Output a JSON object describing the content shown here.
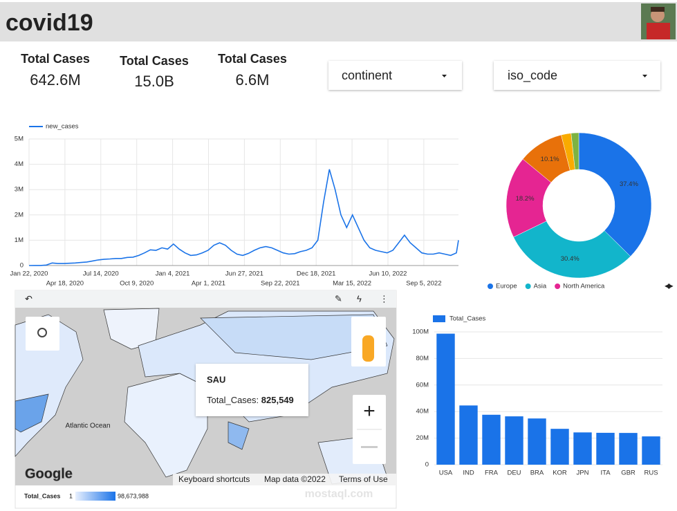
{
  "header": {
    "title": "covid19"
  },
  "scorecards": [
    {
      "label": "Total Cases",
      "value": "642.6M"
    },
    {
      "label": "Total Cases",
      "value": "15.0B"
    },
    {
      "label": "Total Cases",
      "value": "6.6M"
    }
  ],
  "filters": [
    "continent",
    "iso_code"
  ],
  "chart_data": [
    {
      "type": "line",
      "x": [
        "2020-01-22",
        "2020-02-05",
        "2020-02-19",
        "2020-03-04",
        "2020-03-18",
        "2020-04-01",
        "2020-04-15",
        "2020-04-29",
        "2020-05-13",
        "2020-05-27",
        "2020-06-10",
        "2020-06-24",
        "2020-07-08",
        "2020-07-22",
        "2020-08-05",
        "2020-08-19",
        "2020-09-02",
        "2020-09-16",
        "2020-09-30",
        "2020-10-14",
        "2020-10-28",
        "2020-11-11",
        "2020-11-25",
        "2020-12-09",
        "2020-12-23",
        "2021-01-06",
        "2021-01-20",
        "2021-02-03",
        "2021-02-17",
        "2021-03-03",
        "2021-03-17",
        "2021-03-31",
        "2021-04-14",
        "2021-04-28",
        "2021-05-12",
        "2021-05-26",
        "2021-06-09",
        "2021-06-23",
        "2021-07-07",
        "2021-07-21",
        "2021-08-04",
        "2021-08-18",
        "2021-09-01",
        "2021-09-15",
        "2021-09-29",
        "2021-10-13",
        "2021-10-27",
        "2021-11-10",
        "2021-11-24",
        "2021-12-08",
        "2021-12-22",
        "2022-01-05",
        "2022-01-19",
        "2022-02-02",
        "2022-02-16",
        "2022-03-02",
        "2022-03-16",
        "2022-03-30",
        "2022-04-13",
        "2022-04-27",
        "2022-05-11",
        "2022-05-25",
        "2022-06-08",
        "2022-06-22",
        "2022-07-06",
        "2022-07-20",
        "2022-08-03",
        "2022-08-17",
        "2022-08-31",
        "2022-09-14",
        "2022-09-28",
        "2022-10-12",
        "2022-10-26",
        "2022-11-09",
        "2022-11-23",
        "2022-11-28"
      ],
      "series": [
        {
          "name": "new_cases",
          "color": "#1a73e8",
          "values": [
            0,
            2000,
            2000,
            20000,
            100000,
            80000,
            80000,
            90000,
            100000,
            120000,
            140000,
            180000,
            220000,
            250000,
            260000,
            280000,
            280000,
            320000,
            330000,
            400000,
            500000,
            620000,
            600000,
            700000,
            650000,
            850000,
            650000,
            500000,
            400000,
            420000,
            500000,
            600000,
            800000,
            900000,
            800000,
            600000,
            450000,
            400000,
            480000,
            600000,
            700000,
            750000,
            700000,
            600000,
            500000,
            450000,
            470000,
            550000,
            600000,
            700000,
            1000000,
            2500000,
            3800000,
            3000000,
            2000000,
            1500000,
            2000000,
            1500000,
            1000000,
            700000,
            600000,
            550000,
            500000,
            600000,
            900000,
            1200000,
            900000,
            700000,
            500000,
            450000,
            450000,
            500000,
            450000,
            400000,
            500000,
            1000000
          ]
        }
      ],
      "xlim": [
        "2020-01-22",
        "2022-11-28"
      ],
      "xticks": [
        {
          "value": "2020-01-22",
          "label": "Jan 22, 2020"
        },
        {
          "value": "2020-04-18",
          "label": "Apr 18, 2020"
        },
        {
          "value": "2020-07-14",
          "label": "Jul 14, 2020"
        },
        {
          "value": "2020-10-09",
          "label": "Oct 9, 2020"
        },
        {
          "value": "2021-01-04",
          "label": "Jan 4, 2021"
        },
        {
          "value": "2021-04-01",
          "label": "Apr 1, 2021"
        },
        {
          "value": "2021-06-27",
          "label": "Jun 27, 2021"
        },
        {
          "value": "2021-09-22",
          "label": "Sep 22, 2021"
        },
        {
          "value": "2021-12-18",
          "label": "Dec 18, 2021"
        },
        {
          "value": "2022-03-15",
          "label": "Mar 15, 2022"
        },
        {
          "value": "2022-06-10",
          "label": "Jun 10, 2022"
        },
        {
          "value": "2022-09-05",
          "label": "Sep 5, 2022"
        }
      ],
      "ylim": [
        0,
        5000000
      ],
      "yticks": [
        0,
        {
          "value": 1000000,
          "label": "1M"
        },
        {
          "value": 2000000,
          "label": "2M"
        },
        {
          "value": 3000000,
          "label": "3M"
        },
        {
          "value": 4000000,
          "label": "4M"
        },
        {
          "value": 5000000,
          "label": "5M"
        }
      ],
      "grid": true,
      "legend": "top"
    },
    {
      "type": "pie",
      "categories": [
        "Europe",
        "Asia",
        "North America",
        null,
        null,
        null
      ],
      "values": [
        37.4,
        30.4,
        18.2,
        10.1,
        2.2,
        1.7
      ],
      "value_labels": [
        "37.4%",
        "30.4%",
        "18.2%",
        "10.1%",
        null,
        null
      ],
      "colors": [
        "#1a73e8",
        "#12b5cb",
        "#e52592",
        "#e8710a",
        "#f9ab00",
        "#7cb342"
      ],
      "donut": true,
      "legend": "bottom"
    },
    {
      "type": "bar",
      "categories": [
        "USA",
        "IND",
        "FRA",
        "DEU",
        "BRA",
        "KOR",
        "JPN",
        "ITA",
        "GBR",
        "RUS"
      ],
      "series": [
        {
          "name": "Total_Cases",
          "color": "#1a73e8",
          "values": [
            98673988,
            44600000,
            37600000,
            36400000,
            34800000,
            27000000,
            24300000,
            24000000,
            23900000,
            21300000
          ]
        }
      ],
      "ylim": [
        0,
        100000000
      ],
      "yticks": [
        0,
        {
          "value": 20000000,
          "label": "20M"
        },
        {
          "value": 40000000,
          "label": "40M"
        },
        {
          "value": 60000000,
          "label": "60M"
        },
        {
          "value": 80000000,
          "label": "80M"
        },
        {
          "value": 100000000,
          "label": "100M"
        }
      ],
      "grid": true,
      "legend": "top"
    }
  ],
  "map": {
    "tooltip": {
      "title": "SAU",
      "label": "Total_Cases:",
      "value": "825,549"
    },
    "ocean_label": "Atlantic Ocean",
    "logo": "Google",
    "attribution": [
      "Keyboard shortcuts",
      "Map data ©2022",
      "Terms of Use"
    ],
    "legend": {
      "title": "Total_Cases",
      "min": "1",
      "max": "98,673,988"
    }
  },
  "watermark": "mostaql.com"
}
